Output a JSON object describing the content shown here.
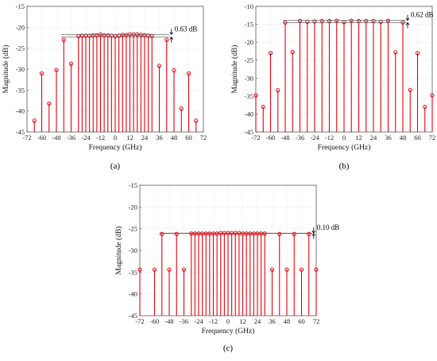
{
  "chart_data": [
    {
      "type": "stem",
      "panel_label": "(a)",
      "xlabel": "Frequency (GHz)",
      "ylabel": "Magnitude (dB)",
      "xlim": [
        -72,
        72
      ],
      "ylim": [
        -45,
        -15
      ],
      "xticks": [
        -72,
        -60,
        -48,
        -36,
        -24,
        -12,
        0,
        12,
        24,
        36,
        48,
        60,
        72
      ],
      "yticks": [
        -45,
        -40,
        -35,
        -30,
        -25,
        -20,
        -15
      ],
      "grid": true,
      "color": "#e8000b",
      "x": [
        -66,
        -60,
        -54,
        -48,
        -42,
        -36,
        -30,
        -27,
        -24,
        -21,
        -18,
        -15,
        -12,
        -9,
        -6,
        -3,
        0,
        3,
        6,
        9,
        12,
        15,
        18,
        21,
        24,
        27,
        30,
        36,
        42,
        48,
        54,
        60,
        66
      ],
      "y": [
        -42.3,
        -31,
        -38.2,
        -30.2,
        -23,
        -28.7,
        -22.1,
        -22,
        -22,
        -22,
        -21.9,
        -21.9,
        -21.7,
        -21.9,
        -21.9,
        -22,
        -22.1,
        -22,
        -21.8,
        -21.8,
        -21.7,
        -21.7,
        -21.7,
        -21.8,
        -21.9,
        -22,
        -22.1,
        -29.2,
        -23,
        -30.3,
        -39.4,
        -31,
        -42.3
      ],
      "annotation": "0.63 dB",
      "flat_top_range": [
        -21.7,
        -22.33
      ]
    },
    {
      "type": "stem",
      "panel_label": "(b)",
      "xlabel": "Frequency (GHz)",
      "ylabel": "Magnitude (dB)",
      "xlim": [
        -72,
        72
      ],
      "ylim": [
        -45,
        -10
      ],
      "xticks": [
        -72,
        -60,
        -48,
        -36,
        -24,
        -12,
        0,
        12,
        24,
        36,
        48,
        60,
        72
      ],
      "yticks": [
        -45,
        -40,
        -35,
        -30,
        -25,
        -20,
        -15,
        -10
      ],
      "grid": true,
      "color": "#e8000b",
      "x": [
        -72,
        -66,
        -60,
        -54,
        -48,
        -42,
        -36,
        -30,
        -24,
        -18,
        -12,
        -6,
        0,
        6,
        12,
        18,
        24,
        30,
        36,
        42,
        48,
        54,
        60,
        66,
        72
      ],
      "y": [
        -34.8,
        -38,
        -23,
        -33.4,
        -14.5,
        -22.7,
        -14.1,
        -14.3,
        -14.2,
        -14.1,
        -14.1,
        -14,
        -14.4,
        -14,
        -14.1,
        -14.1,
        -14.1,
        -14.3,
        -14,
        -22.8,
        -14.5,
        -33.3,
        -23,
        -38,
        -34.8
      ],
      "annotation": "0.62 dB",
      "flat_top_range": [
        -13.9,
        -14.52
      ]
    },
    {
      "type": "stem",
      "panel_label": "(c)",
      "xlabel": "Frequency (GHz)",
      "ylabel": "Magnitude (dB)",
      "xlim": [
        -72,
        72
      ],
      "ylim": [
        -45,
        -15
      ],
      "xticks": [
        -72,
        -60,
        -48,
        -36,
        -24,
        -12,
        0,
        12,
        24,
        36,
        48,
        60,
        72
      ],
      "yticks": [
        -45,
        -40,
        -35,
        -30,
        -25,
        -20,
        -15
      ],
      "grid": true,
      "color": "#e8000b",
      "x": [
        -72,
        -60,
        -54,
        -48,
        -42,
        -36,
        -30,
        -27,
        -24,
        -21,
        -18,
        -15,
        -12,
        -9,
        -6,
        -3,
        0,
        3,
        6,
        9,
        12,
        15,
        18,
        21,
        24,
        27,
        30,
        36,
        42,
        48,
        54,
        60,
        66,
        72
      ],
      "y": [
        -34.4,
        -34.4,
        -26.2,
        -34.4,
        -26.2,
        -34.4,
        -26.1,
        -26.1,
        -26.1,
        -26.1,
        -26.1,
        -26.1,
        -26.1,
        -26.1,
        -26,
        -26,
        -26,
        -26,
        -26,
        -26,
        -26.1,
        -26.1,
        -26.1,
        -26.1,
        -26.1,
        -26.1,
        -26.1,
        -34.4,
        -26.2,
        -34.4,
        -26.2,
        -34.4,
        -26.2,
        -34.4
      ],
      "annotation": "0.10 dB",
      "flat_top_range": [
        -26.0,
        -26.1
      ]
    }
  ]
}
